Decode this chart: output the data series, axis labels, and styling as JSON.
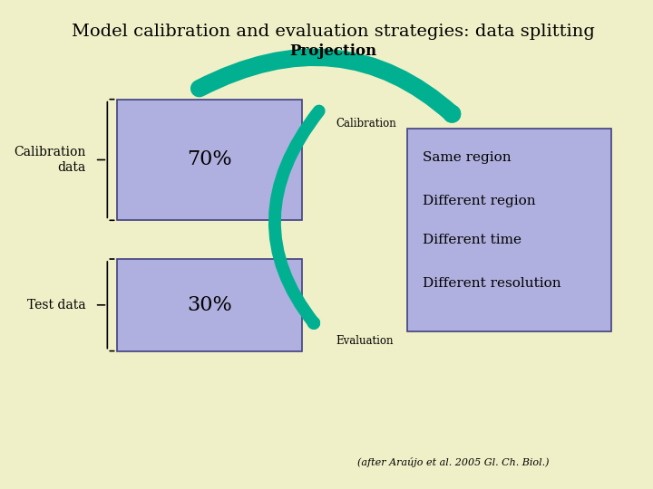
{
  "title": "Model calibration and evaluation strategies: data splitting",
  "bg_color": "#f0f0c8",
  "box_color": "#b0b0e0",
  "box_edge_color": "#404080",
  "arrow_color": "#00b090",
  "projection_label": "Projection",
  "calibration_label": "Calibration",
  "evaluation_label": "Evaluation",
  "calib_data_label": "Calibration\ndata",
  "test_data_label": "Test data",
  "pct_70": "70%",
  "pct_30": "30%",
  "right_box_lines": [
    "Same region",
    "Different region",
    "Different time",
    "Different resolution"
  ],
  "citation": "(after Araújo et al. 2005 Gl. Ch. Biol.)"
}
